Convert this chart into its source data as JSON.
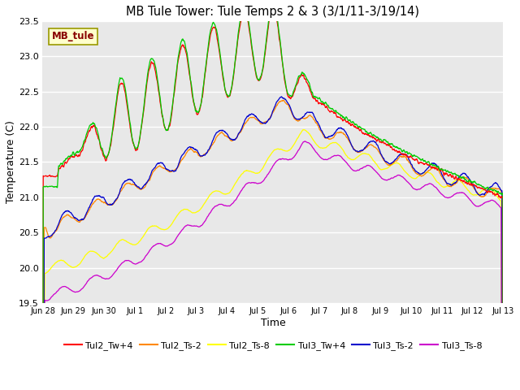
{
  "title": "MB Tule Tower: Tule Temps 2 & 3 (3/1/11-3/19/14)",
  "xlabel": "Time",
  "ylabel": "Temperature (C)",
  "ylim": [
    19.5,
    23.5
  ],
  "fig_bg": "#ffffff",
  "plot_bg": "#e8e8e8",
  "legend_label": "MB_tule",
  "series_colors": {
    "tul2_tw4": "#ff0000",
    "tul2_ts2": "#ff8800",
    "tul2_ts8": "#ffff00",
    "tul3_tw4": "#00cc00",
    "tul3_ts2": "#0000cc",
    "tul3_ts8": "#cc00cc"
  },
  "x_tick_labels": [
    "Jun 28",
    "Jun 29",
    "Jun 30",
    "Jul 1",
    "Jul 2",
    "Jul 3",
    "Jul 4",
    "Jul 5",
    "Jul 6",
    "Jul 7",
    "Jul 8",
    "Jul 9",
    "Jul 10",
    "Jul 11",
    "Jul 12",
    "Jul 13"
  ],
  "yticks": [
    19.5,
    20.0,
    20.5,
    21.0,
    21.5,
    22.0,
    22.5,
    23.0,
    23.5
  ],
  "grid_color": "#ffffff",
  "lw": 0.9
}
